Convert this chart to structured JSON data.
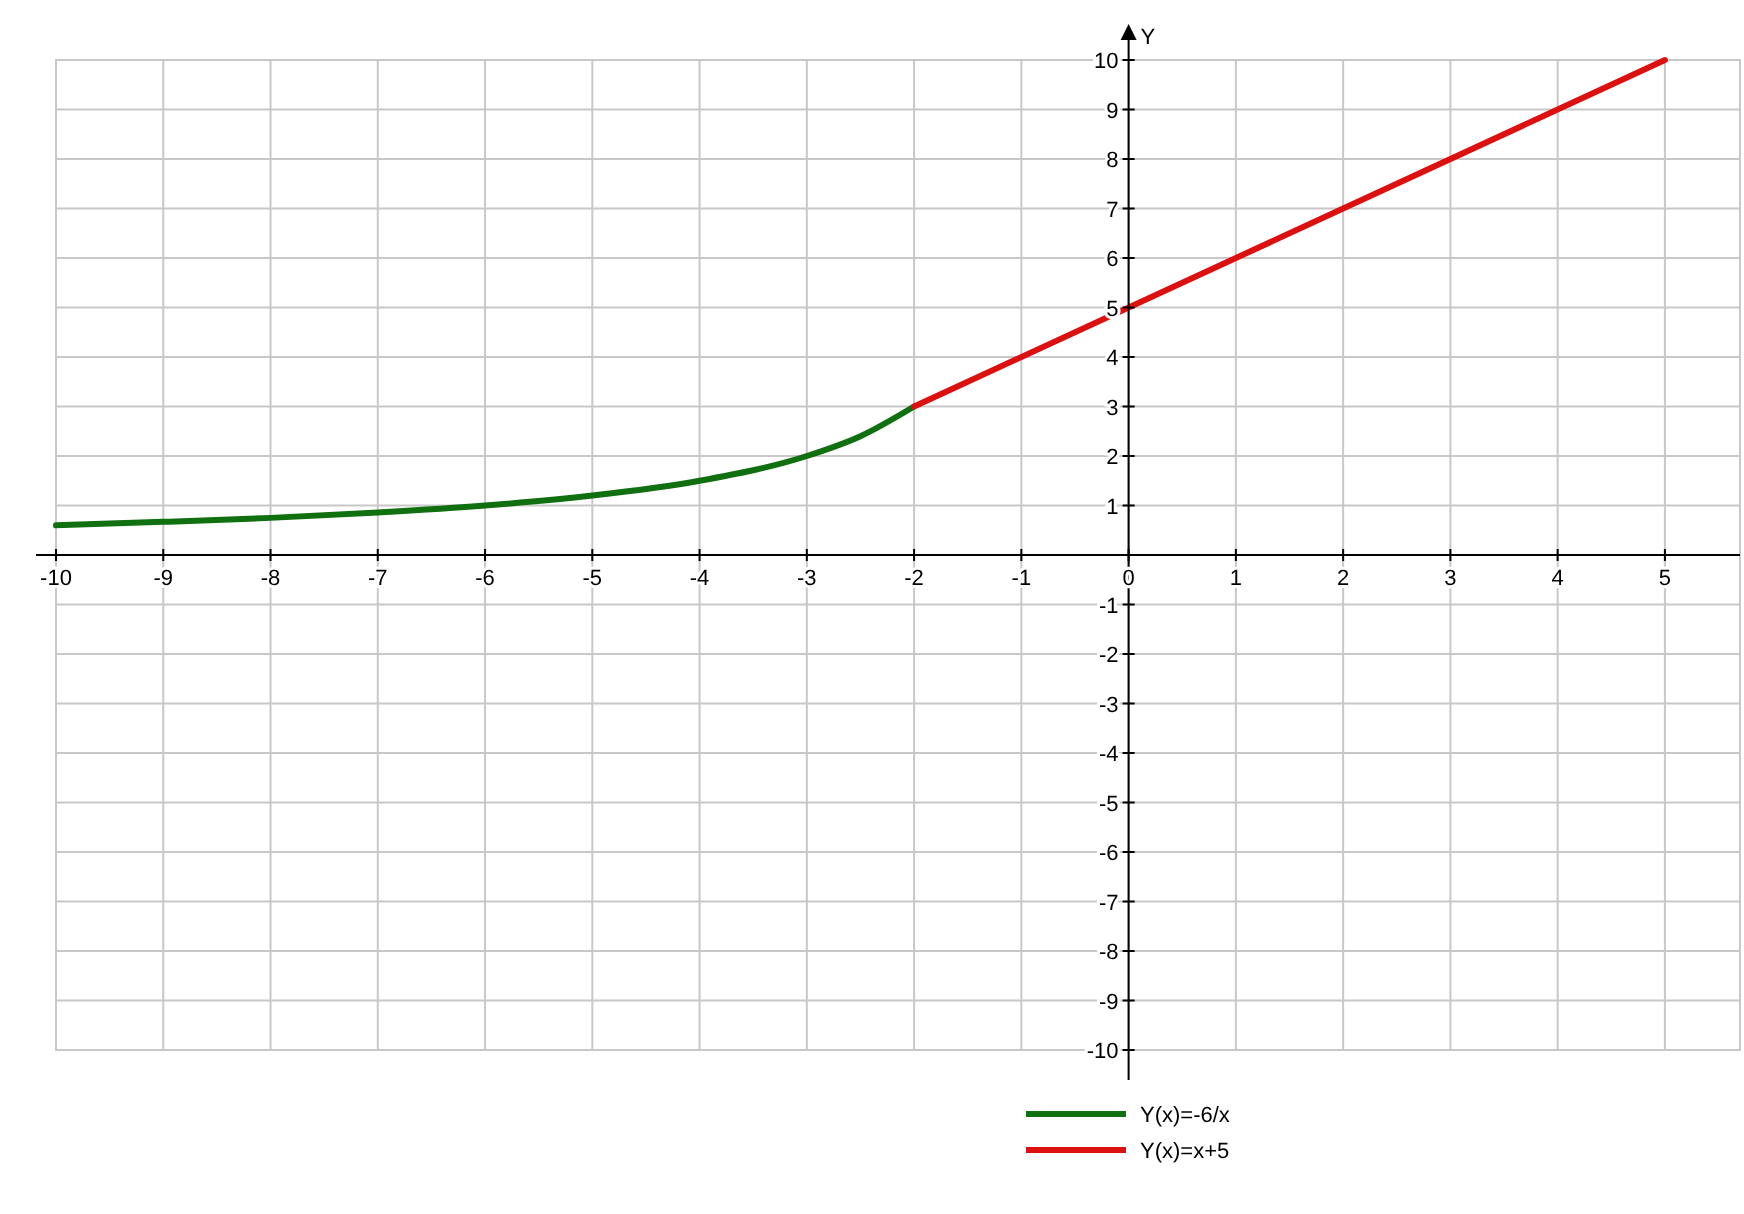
{
  "chart_data": {
    "type": "line",
    "ylabel": "Y",
    "xlim": [
      -10,
      5.7
    ],
    "ylim": [
      -10,
      10
    ],
    "xticks": [
      -10,
      -9,
      -8,
      -7,
      -6,
      -5,
      -4,
      -3,
      -2,
      -1,
      {
        "value": 0,
        "label": "0"
      },
      1,
      2,
      3,
      4,
      5
    ],
    "yticks": [
      -10,
      -9,
      -8,
      -7,
      -6,
      -5,
      -4,
      -3,
      -2,
      -1,
      {
        "value": 0,
        "label": null
      },
      1,
      2,
      3,
      4,
      5,
      6,
      7,
      8,
      9,
      10
    ],
    "grid": true,
    "legend": "bottom",
    "line_style": "solid",
    "marker": "none",
    "series": [
      {
        "name": "Y(x)=-6/x",
        "color": "#107010",
        "x": [
          -10,
          -9,
          -8,
          -7,
          -6,
          -5,
          -4,
          -3,
          -2.5,
          -2
        ],
        "values": [
          0.6,
          0.67,
          0.75,
          0.86,
          1,
          1.2,
          1.5,
          2,
          2.4,
          3
        ]
      },
      {
        "name": "Y(x)=x+5",
        "color": "#dd1010",
        "x": [
          -2,
          5
        ],
        "values": [
          3,
          10
        ]
      }
    ]
  }
}
